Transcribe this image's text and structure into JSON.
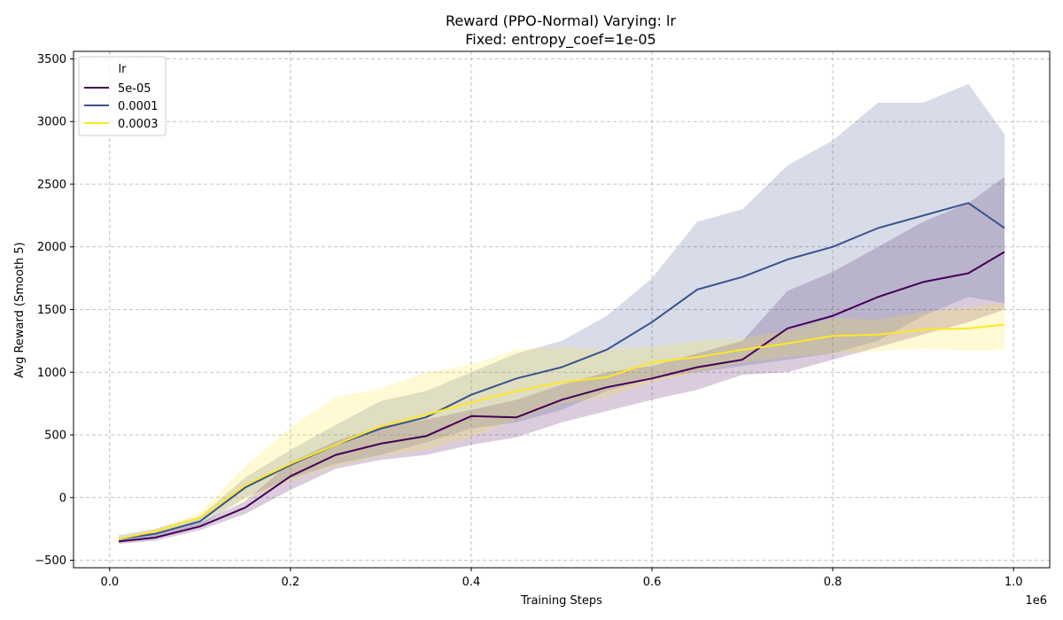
{
  "chart_data": {
    "type": "line",
    "title_line1": "Reward (PPO-Normal) Varying: lr",
    "title_line2": "Fixed: entropy_coef=1e-05",
    "xlabel": "Training Steps",
    "ylabel": "Avg Reward (Smooth 5)",
    "x_offset_text": "1e6",
    "xlim": [
      -0.04,
      1.04
    ],
    "ylim": [
      -560,
      3560
    ],
    "x_ticks": [
      0.0,
      0.2,
      0.4,
      0.6,
      0.8,
      1.0
    ],
    "x_tick_labels": [
      "0.0",
      "0.2",
      "0.4",
      "0.6",
      "0.8",
      "1.0"
    ],
    "y_ticks": [
      -500,
      0,
      500,
      1000,
      1500,
      2000,
      2500,
      3000,
      3500
    ],
    "y_tick_labels": [
      "−500",
      "0",
      "500",
      "1000",
      "1500",
      "2000",
      "2500",
      "3000",
      "3500"
    ],
    "grid": true,
    "legend_title": "lr",
    "legend_position": "top-left",
    "x": [
      0.01,
      0.05,
      0.1,
      0.15,
      0.2,
      0.25,
      0.3,
      0.35,
      0.4,
      0.45,
      0.5,
      0.55,
      0.6,
      0.65,
      0.7,
      0.75,
      0.8,
      0.85,
      0.9,
      0.95,
      0.99
    ],
    "series": [
      {
        "name": "5e-05",
        "color": "#440154",
        "values": [
          -350,
          -320,
          -230,
          -80,
          170,
          340,
          430,
          490,
          650,
          640,
          780,
          880,
          950,
          1040,
          1100,
          1350,
          1450,
          1600,
          1720,
          1790,
          1960
        ],
        "lower": [
          -370,
          -345,
          -260,
          -130,
          60,
          230,
          300,
          340,
          420,
          480,
          600,
          690,
          780,
          860,
          980,
          1000,
          1100,
          1200,
          1300,
          1400,
          1500
        ],
        "upper": [
          -330,
          -295,
          -200,
          -30,
          280,
          450,
          570,
          620,
          700,
          780,
          900,
          1000,
          1050,
          1150,
          1250,
          1650,
          1800,
          2000,
          2200,
          2350,
          2560
        ]
      },
      {
        "name": "0.0001",
        "color": "#3b528b",
        "values": [
          -330,
          -290,
          -190,
          80,
          260,
          420,
          550,
          640,
          820,
          950,
          1040,
          1180,
          1400,
          1660,
          1760,
          1900,
          2000,
          2150,
          2250,
          2350,
          2150
        ],
        "lower": [
          -360,
          -330,
          -230,
          0,
          150,
          270,
          340,
          440,
          550,
          600,
          700,
          850,
          950,
          1000,
          1050,
          1100,
          1150,
          1250,
          1450,
          1600,
          1550
        ],
        "upper": [
          -300,
          -250,
          -150,
          160,
          380,
          580,
          770,
          850,
          1000,
          1150,
          1250,
          1450,
          1750,
          2200,
          2300,
          2650,
          2850,
          3150,
          3150,
          3300,
          2900
        ]
      },
      {
        "name": "0.0003",
        "color": "#fde725",
        "values": [
          -330,
          -270,
          -160,
          100,
          270,
          420,
          570,
          660,
          760,
          850,
          920,
          960,
          1080,
          1120,
          1180,
          1230,
          1290,
          1300,
          1340,
          1350,
          1380
        ],
        "lower": [
          -340,
          -290,
          -200,
          -20,
          130,
          250,
          330,
          380,
          480,
          620,
          750,
          800,
          920,
          1000,
          1080,
          1120,
          1150,
          1170,
          1190,
          1170,
          1180
        ],
        "upper": [
          -320,
          -250,
          -120,
          250,
          560,
          800,
          870,
          1000,
          1060,
          1180,
          1200,
          1180,
          1200,
          1250,
          1270,
          1330,
          1430,
          1420,
          1480,
          1520,
          1550
        ]
      }
    ]
  }
}
